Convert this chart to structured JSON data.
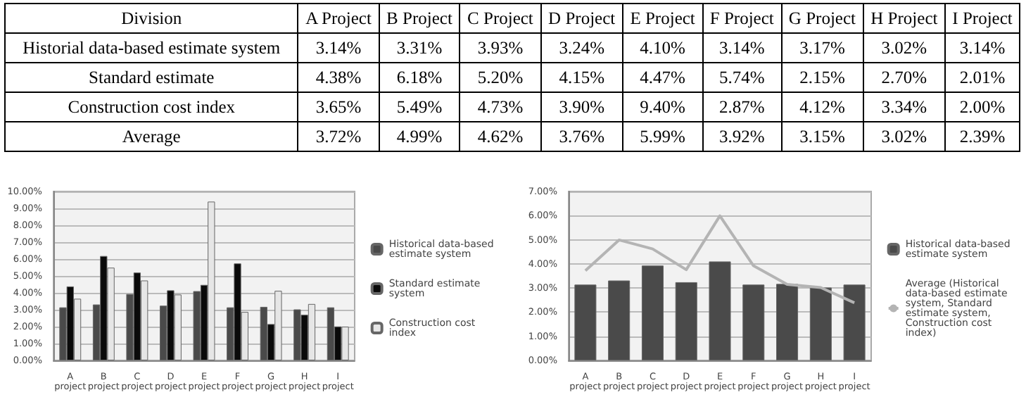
{
  "chart_data": [
    {
      "type": "other",
      "annotations": [
        "Division"
      ],
      "categories": [
        "A Project",
        "B Project",
        "C Project",
        "D Project",
        "E Project",
        "F Project",
        "G Project",
        "H Project",
        "I Project"
      ],
      "series": [
        {
          "name": "Historial data-based estimate system",
          "values": [
            3.14,
            3.31,
            3.93,
            3.24,
            4.1,
            3.14,
            3.17,
            3.02,
            3.14
          ],
          "value_labels": [
            "3.14%",
            "3.31%",
            "3.93%",
            "3.24%",
            "4.10%",
            "3.14%",
            "3.17%",
            "3.02%",
            "3.14%"
          ]
        },
        {
          "name": "Standard estimate",
          "values": [
            4.38,
            6.18,
            5.2,
            4.15,
            4.47,
            5.74,
            2.15,
            2.7,
            2.01
          ],
          "value_labels": [
            "4.38%",
            "6.18%",
            "5.20%",
            "4.15%",
            "4.47%",
            "5.74%",
            "2.15%",
            "2.70%",
            "2.01%"
          ]
        },
        {
          "name": "Construction cost index",
          "values": [
            3.65,
            5.49,
            4.73,
            3.9,
            9.4,
            2.87,
            4.12,
            3.34,
            2.0
          ],
          "value_labels": [
            "3.65%",
            "5.49%",
            "4.73%",
            "3.90%",
            "9.40%",
            "2.87%",
            "4.12%",
            "3.34%",
            "2.00%"
          ]
        },
        {
          "name": "Average",
          "values": [
            3.72,
            4.99,
            4.62,
            3.76,
            5.99,
            3.92,
            3.15,
            3.02,
            2.39
          ],
          "value_labels": [
            "3.72%",
            "4.99%",
            "4.62%",
            "3.76%",
            "5.99%",
            "3.92%",
            "3.15%",
            "3.02%",
            "2.39%"
          ]
        }
      ]
    },
    {
      "type": "bar",
      "categories": [
        "A project",
        "B project",
        "C project",
        "D project",
        "E project",
        "F project",
        "G project",
        "H project",
        "I project"
      ],
      "ylim": [
        0,
        10
      ],
      "yticks": [
        {
          "value": 0,
          "label": "0.00%"
        },
        {
          "value": 1,
          "label": "1.00%"
        },
        {
          "value": 2,
          "label": "2.00%"
        },
        {
          "value": 3,
          "label": "3.00%"
        },
        {
          "value": 4,
          "label": "4.00%"
        },
        {
          "value": 5,
          "label": "5.00%"
        },
        {
          "value": 6,
          "label": "6.00%"
        },
        {
          "value": 7,
          "label": "7.00%"
        },
        {
          "value": 8,
          "label": "8.00%"
        },
        {
          "value": 9,
          "label": "9.00%"
        },
        {
          "value": 10,
          "label": "10.00%"
        }
      ],
      "grid": "y",
      "legend": "right",
      "series": [
        {
          "name": "Historical data-based estimate system",
          "color": "#4a4a4a",
          "values": [
            3.14,
            3.31,
            3.93,
            3.24,
            4.1,
            3.14,
            3.17,
            3.02,
            3.14
          ]
        },
        {
          "name": "Standard estimate system",
          "color": "#0a0a0a",
          "values": [
            4.38,
            6.18,
            5.2,
            4.15,
            4.47,
            5.74,
            2.15,
            2.7,
            2.01
          ]
        },
        {
          "name": "Construction cost index",
          "color": "#e6e6e6",
          "values": [
            3.65,
            5.49,
            4.73,
            3.9,
            9.4,
            2.87,
            4.12,
            3.34,
            2.0
          ]
        }
      ]
    },
    {
      "type": "bar",
      "categories": [
        "A project",
        "B project",
        "C project",
        "D project",
        "E project",
        "F project",
        "G project",
        "H project",
        "I project"
      ],
      "ylim": [
        0,
        7
      ],
      "yticks": [
        {
          "value": 0,
          "label": "0.00%"
        },
        {
          "value": 1,
          "label": "1.00%"
        },
        {
          "value": 2,
          "label": "2.00%"
        },
        {
          "value": 3,
          "label": "3.00%"
        },
        {
          "value": 4,
          "label": "4.00%"
        },
        {
          "value": 5,
          "label": "5.00%"
        },
        {
          "value": 6,
          "label": "6.00%"
        },
        {
          "value": 7,
          "label": "7.00%"
        }
      ],
      "grid": "y",
      "legend": "right",
      "marker": "none",
      "line_style": "solid",
      "series": [
        {
          "name": "Historical data-based estimate system",
          "color": "#4a4a4a",
          "values": [
            3.14,
            3.31,
            3.93,
            3.24,
            4.1,
            3.14,
            3.17,
            3.02,
            3.14
          ]
        },
        {
          "name": "Average (Historical data-based estimate system, Standard estimate system, Construction cost index)",
          "type": "line",
          "color": "#b4b4b4",
          "values": [
            3.72,
            4.99,
            4.62,
            3.76,
            5.99,
            3.92,
            3.15,
            3.02,
            2.39
          ]
        }
      ]
    }
  ]
}
